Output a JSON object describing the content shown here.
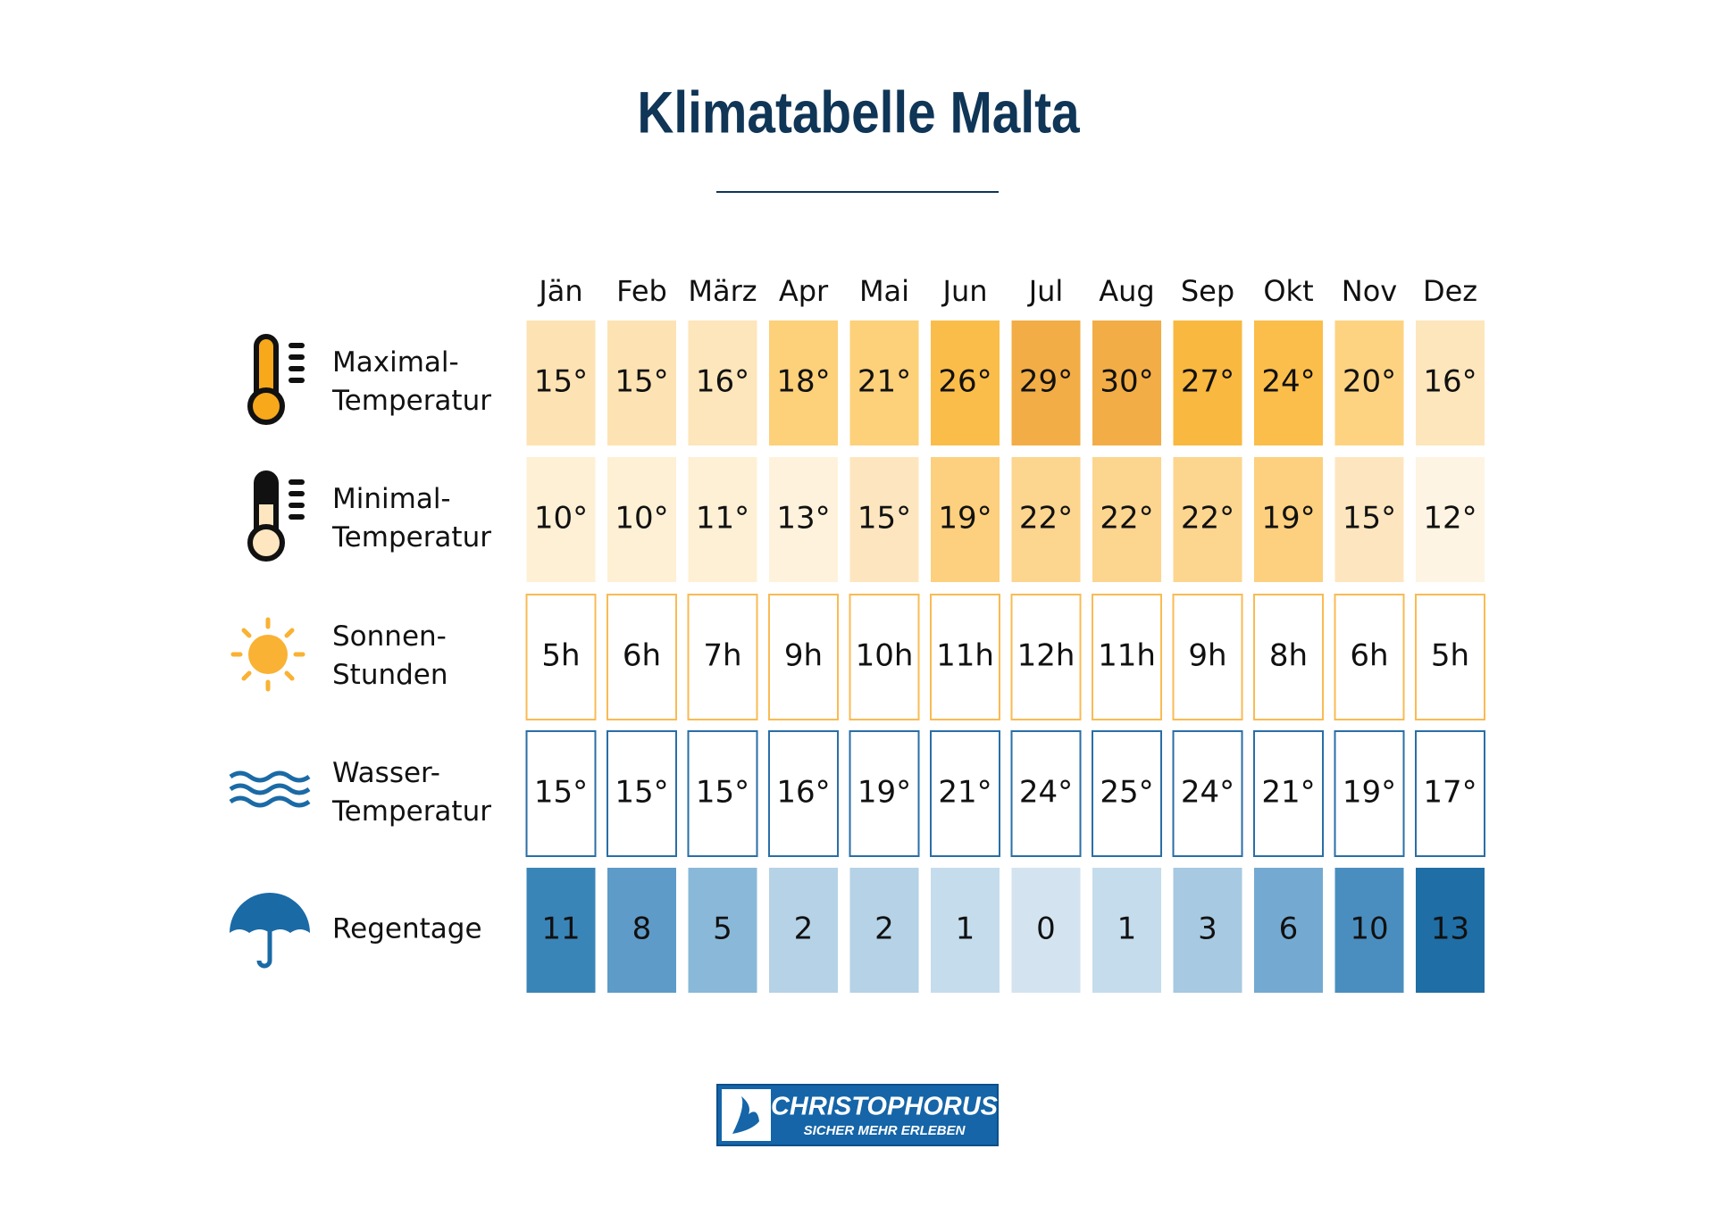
{
  "header": {
    "title": "Klimatabelle Malta"
  },
  "table": {
    "columns": [
      "Jän",
      "Feb",
      "März",
      "Apr",
      "Mai",
      "Jun",
      "Jul",
      "Aug",
      "Sep",
      "Okt",
      "Nov",
      "Dez"
    ],
    "rows": [
      {
        "label": [
          "Maximal-",
          "Temperatur"
        ],
        "cells": [
          "15°",
          "15°",
          "16°",
          "18°",
          "21°",
          "26°",
          "29°",
          "30°",
          "27°",
          "24°",
          "20°",
          "16°"
        ]
      },
      {
        "label": [
          "Minimal-",
          "Temperatur"
        ],
        "cells": [
          "10°",
          "10°",
          "11°",
          "13°",
          "15°",
          "19°",
          "22°",
          "22°",
          "22°",
          "19°",
          "15°",
          "12°"
        ]
      },
      {
        "label": [
          "Sonnen-",
          "Stunden"
        ],
        "cells": [
          "5h",
          "6h",
          "7h",
          "9h",
          "10h",
          "11h",
          "12h",
          "11h",
          "9h",
          "8h",
          "6h",
          "5h"
        ]
      },
      {
        "label": [
          "Wasser-",
          "Temperatur"
        ],
        "cells": [
          "15°",
          "15°",
          "15°",
          "16°",
          "19°",
          "21°",
          "24°",
          "25°",
          "24°",
          "21°",
          "19°",
          "17°"
        ]
      },
      {
        "label": [
          "Regentage"
        ],
        "cells": [
          "11",
          "8",
          "5",
          "2",
          "2",
          "1",
          "0",
          "1",
          "3",
          "6",
          "10",
          "13"
        ]
      }
    ]
  },
  "footer": {
    "logo": {
      "name": "CHRISTOPHORUS",
      "slogan": "SICHER MEHR ERLEBEN"
    }
  }
}
